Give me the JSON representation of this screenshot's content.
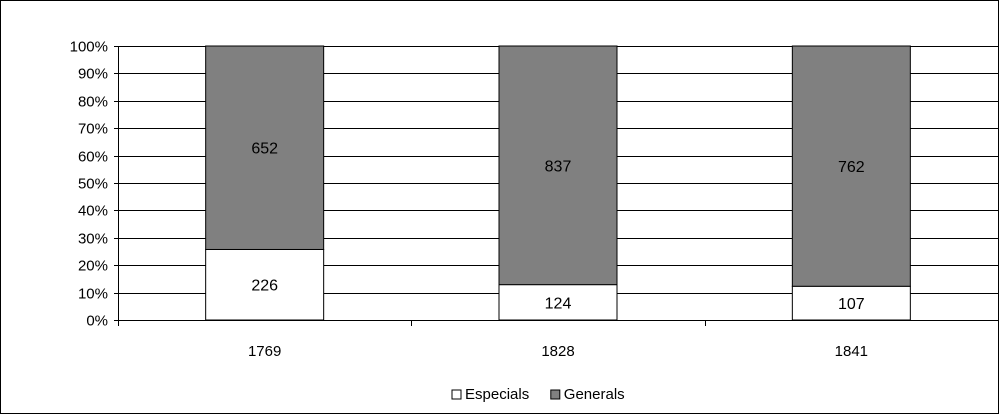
{
  "chart_data": {
    "type": "bar",
    "stacked": "percent",
    "categories": [
      "1769",
      "1828",
      "1841"
    ],
    "series": [
      {
        "name": "Especials",
        "values": [
          226,
          124,
          107
        ],
        "color": "#ffffff"
      },
      {
        "name": "Generals",
        "values": [
          652,
          837,
          762
        ],
        "color": "#808080"
      }
    ],
    "y_ticks": [
      "0%",
      "10%",
      "20%",
      "30%",
      "40%",
      "50%",
      "60%",
      "70%",
      "80%",
      "90%",
      "100%"
    ],
    "ylim": [
      0,
      100
    ],
    "grid": true,
    "legend_position": "bottom"
  }
}
